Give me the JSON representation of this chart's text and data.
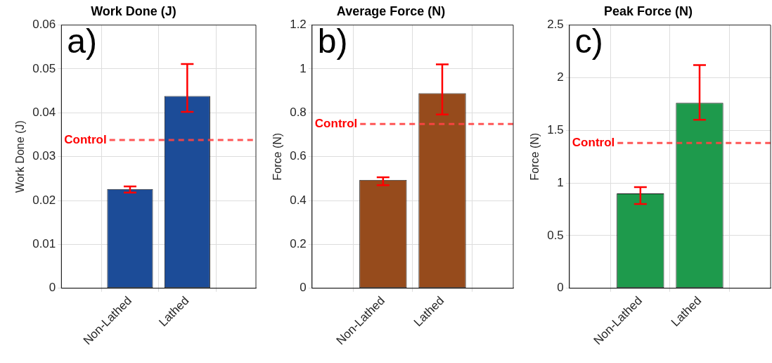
{
  "chart_data": [
    {
      "type": "bar",
      "title": "Work Done (J)",
      "ylabel": "Work Done (J)",
      "categories": [
        "Non-Lathed",
        "Lathed"
      ],
      "values": [
        0.0226,
        0.0438
      ],
      "color": "#1c4c98",
      "errors": [
        [
          0.0218,
          0.0232
        ],
        [
          0.0402,
          0.0511
        ]
      ],
      "ylim": [
        0,
        0.06
      ],
      "yticks": [
        0,
        0.01,
        0.02,
        0.03,
        0.04,
        0.05,
        0.06
      ],
      "grid": true,
      "ref_lines": [
        {
          "axis": "y",
          "value": 0.0338,
          "label": "Control",
          "color": "#ff4444",
          "line_style": "dashed"
        }
      ],
      "annotations": [
        "a)"
      ]
    },
    {
      "type": "bar",
      "title": "Average Force (N)",
      "ylabel": "Force (N)",
      "categories": [
        "Non-Lathed",
        "Lathed"
      ],
      "values": [
        0.494,
        0.889
      ],
      "color": "#964b1c",
      "errors": [
        [
          0.47,
          0.506
        ],
        [
          0.792,
          1.021
        ]
      ],
      "ylim": [
        0,
        1.2
      ],
      "yticks": [
        0,
        0.2,
        0.4,
        0.6,
        0.8,
        1,
        1.2
      ],
      "grid": true,
      "ref_lines": [
        {
          "axis": "y",
          "value": 0.749,
          "label": "Control",
          "color": "#ff4444",
          "line_style": "dashed"
        }
      ],
      "annotations": [
        "b)"
      ]
    },
    {
      "type": "bar",
      "title": "Peak Force (N)",
      "ylabel": "Force (N)",
      "categories": [
        "Non-Lathed",
        "Lathed"
      ],
      "values": [
        0.9,
        1.76
      ],
      "color": "#1e9a4c",
      "errors": [
        [
          0.8,
          0.96
        ],
        [
          1.6,
          2.12
        ]
      ],
      "ylim": [
        0,
        2.5
      ],
      "yticks": [
        0,
        0.5,
        1,
        1.5,
        2,
        2.5
      ],
      "grid": true,
      "ref_lines": [
        {
          "axis": "y",
          "value": 1.38,
          "label": "Control",
          "color": "#ff4444",
          "line_style": "dashed"
        }
      ],
      "annotations": [
        "c)"
      ]
    }
  ]
}
